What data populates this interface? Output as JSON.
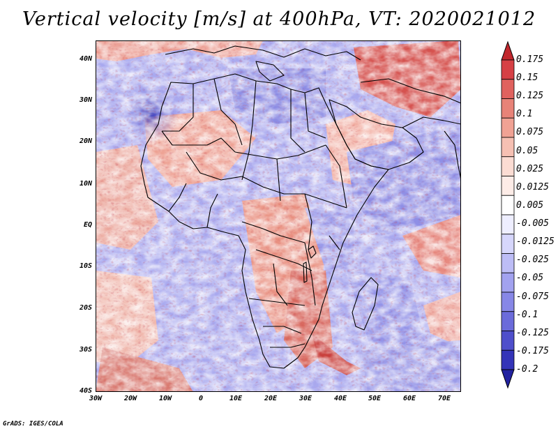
{
  "title": "Vertical velocity [m/s] at 400hPa, VT: 2020021012",
  "credit": "GrADS: IGES/COLA",
  "map": {
    "region": "Africa",
    "variable": "Vertical velocity",
    "units": "m/s",
    "level": "400hPa",
    "valid_time": "2020021012",
    "lat_labels": [
      "40N",
      "30N",
      "20N",
      "10N",
      "EQ",
      "10S",
      "20S",
      "30S",
      "40S"
    ],
    "lon_labels": [
      "30W",
      "20W",
      "10W",
      "0",
      "10E",
      "20E",
      "30E",
      "40E",
      "50E",
      "60E",
      "70E"
    ]
  },
  "colorbar": {
    "labels": [
      "0.175",
      "0.15",
      "0.125",
      "0.1",
      "0.075",
      "0.05",
      "0.025",
      "0.0125",
      "0.005",
      "-0.005",
      "-0.0125",
      "-0.025",
      "-0.05",
      "-0.075",
      "-0.1",
      "-0.125",
      "-0.175",
      "-0.2"
    ],
    "colors": [
      "#c1272d",
      "#d64045",
      "#e0625e",
      "#e88378",
      "#f0a294",
      "#f6c0b3",
      "#fbdcd3",
      "#fdece7",
      "#ffffff",
      "#eeeeff",
      "#d6d6fb",
      "#bdbdf6",
      "#a2a2ef",
      "#8787e6",
      "#6b6bda",
      "#4f4fcb",
      "#3434b8",
      "#2222a0"
    ]
  }
}
